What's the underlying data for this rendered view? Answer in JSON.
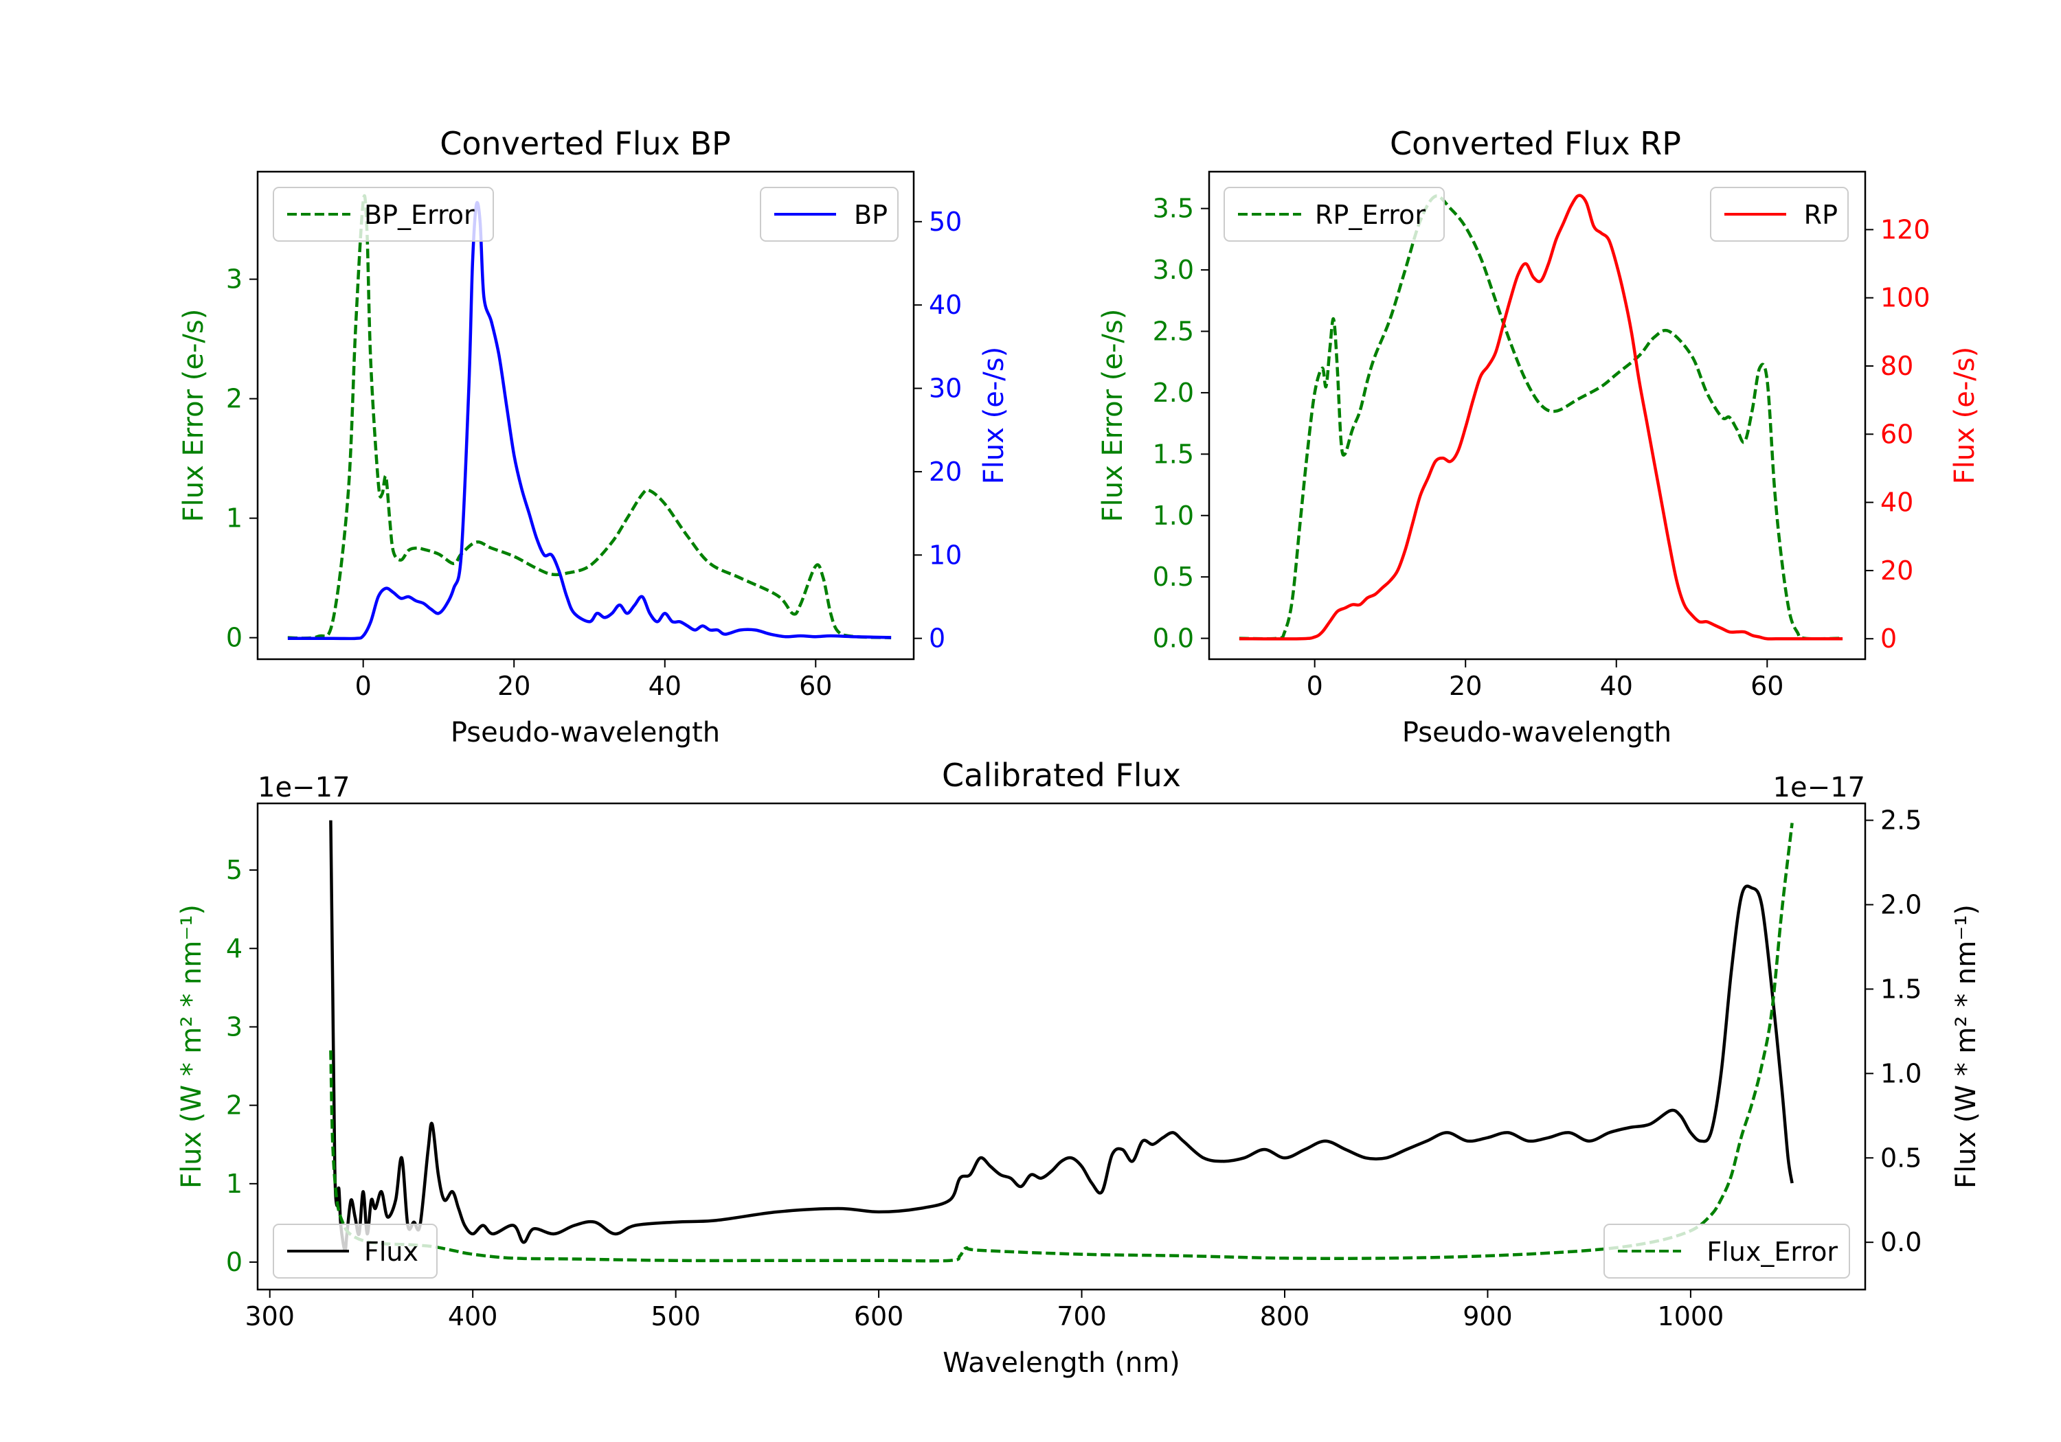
{
  "chart_data": [
    {
      "type": "line",
      "title": "Converted Flux BP",
      "xlabel": "Pseudo-wavelength",
      "ylabel_left": "Flux Error (e-/s)",
      "ylabel_right": "Flux (e-/s)",
      "xlim": [
        -14,
        73
      ],
      "ylim_left": [
        -0.18,
        3.9
      ],
      "ylim_right": [
        -2.5,
        56
      ],
      "xticks": [
        0,
        20,
        40,
        60
      ],
      "yticks_left": [
        0,
        1,
        2,
        3
      ],
      "yticks_right": [
        0,
        10,
        20,
        30,
        40,
        50
      ],
      "legend_left": "top-left",
      "legend_right": "top-right",
      "series": [
        {
          "name": "BP_Error",
          "axis": "left",
          "color": "#008000",
          "style": "dashed",
          "x": [
            -10,
            -6,
            -4,
            -2,
            -1,
            0,
            0.5,
            1,
            2,
            2.5,
            3,
            3.5,
            4,
            5,
            6,
            7,
            8,
            10,
            12,
            13,
            15,
            17,
            20,
            23,
            25,
            27,
            30,
            33,
            35,
            37,
            38,
            40,
            43,
            46,
            50,
            55,
            57,
            58,
            60,
            61,
            62,
            63,
            65,
            70
          ],
          "y": [
            0.0,
            0.01,
            0.15,
            1.2,
            2.6,
            3.65,
            3.4,
            2.3,
            1.3,
            1.2,
            1.35,
            1.0,
            0.72,
            0.65,
            0.73,
            0.75,
            0.74,
            0.7,
            0.62,
            0.7,
            0.8,
            0.75,
            0.68,
            0.58,
            0.53,
            0.54,
            0.6,
            0.8,
            1.0,
            1.2,
            1.23,
            1.12,
            0.85,
            0.62,
            0.5,
            0.35,
            0.2,
            0.28,
            0.6,
            0.5,
            0.2,
            0.05,
            0.01,
            0.0
          ]
        },
        {
          "name": "BP",
          "axis": "right",
          "color": "#0000ff",
          "style": "solid",
          "x": [
            -10,
            -4,
            -1,
            0,
            1,
            2,
            3,
            4,
            5,
            6,
            7,
            8,
            9,
            10,
            11,
            12,
            13,
            14,
            14.5,
            15,
            15.5,
            16,
            17,
            18,
            19,
            20,
            21,
            22,
            23,
            24,
            25,
            26,
            27,
            28,
            30,
            31,
            32,
            33,
            34,
            35,
            36,
            37,
            38,
            39,
            40,
            41,
            42,
            43,
            44,
            45,
            46,
            47,
            48,
            50,
            52,
            54,
            56,
            58,
            60,
            62,
            65,
            70
          ],
          "y": [
            0,
            0,
            0,
            0.3,
            2,
            5,
            6,
            5.5,
            4.8,
            5,
            4.5,
            4.2,
            3.5,
            3,
            4,
            6,
            10,
            30,
            45,
            52,
            50,
            41,
            38,
            34,
            28,
            22,
            18,
            15,
            12,
            10,
            10,
            8,
            5,
            3,
            2,
            3,
            2.5,
            3,
            4,
            3,
            4,
            5,
            3,
            2,
            3,
            2,
            2,
            1.5,
            1,
            1.5,
            1,
            1,
            0.5,
            1,
            1,
            0.5,
            0.2,
            0.3,
            0.2,
            0.3,
            0.2,
            0.1
          ]
        }
      ]
    },
    {
      "type": "line",
      "title": "Converted Flux RP",
      "xlabel": "Pseudo-wavelength",
      "ylabel_left": "Flux Error (e-/s)",
      "ylabel_right": "Flux (e-/s)",
      "xlim": [
        -14,
        73
      ],
      "ylim_left": [
        -0.17,
        3.8
      ],
      "ylim_right": [
        -6,
        137
      ],
      "xticks": [
        0,
        20,
        40,
        60
      ],
      "yticks_left": [
        0.0,
        0.5,
        1.0,
        1.5,
        2.0,
        2.5,
        3.0,
        3.5
      ],
      "yticks_right": [
        0,
        20,
        40,
        60,
        80,
        100,
        120
      ],
      "legend_left": "top-left",
      "legend_right": "top-right",
      "series": [
        {
          "name": "RP_Error",
          "axis": "left",
          "color": "#008000",
          "style": "dashed",
          "x": [
            -10,
            -5,
            -4,
            -3,
            -2,
            -1,
            0,
            1,
            1.5,
            2,
            2.5,
            3,
            3.5,
            4,
            5,
            6,
            7,
            8,
            10,
            12,
            14,
            16,
            18,
            20,
            22,
            24,
            26,
            28,
            30,
            32,
            35,
            38,
            40,
            43,
            45,
            47,
            50,
            52,
            54,
            55,
            56,
            57,
            58,
            59,
            60,
            61,
            62,
            63,
            64,
            65,
            70
          ],
          "y": [
            0.0,
            0.0,
            0.05,
            0.3,
            0.9,
            1.5,
            2.0,
            2.2,
            2.05,
            2.35,
            2.6,
            2.2,
            1.6,
            1.5,
            1.7,
            1.85,
            2.1,
            2.3,
            2.6,
            3.0,
            3.4,
            3.6,
            3.5,
            3.35,
            3.1,
            2.75,
            2.4,
            2.1,
            1.9,
            1.85,
            1.95,
            2.05,
            2.15,
            2.3,
            2.45,
            2.5,
            2.3,
            2.0,
            1.8,
            1.8,
            1.7,
            1.6,
            1.85,
            2.2,
            2.1,
            1.2,
            0.6,
            0.2,
            0.05,
            0.0,
            0.0
          ]
        },
        {
          "name": "RP",
          "axis": "right",
          "color": "#ff0000",
          "style": "solid",
          "x": [
            -10,
            -2,
            0,
            1,
            2,
            3,
            4,
            5,
            6,
            7,
            8,
            9,
            10,
            11,
            12,
            13,
            14,
            15,
            16,
            17,
            18,
            19,
            20,
            21,
            22,
            23,
            24,
            25,
            26,
            27,
            28,
            29,
            30,
            31,
            32,
            33,
            34,
            35,
            36,
            37,
            38,
            39,
            40,
            41,
            42,
            43,
            44,
            45,
            46,
            47,
            48,
            49,
            50,
            51,
            52,
            53,
            54,
            55,
            56,
            57,
            58,
            59,
            60,
            62,
            65,
            70
          ],
          "y": [
            0,
            0,
            0.5,
            2,
            5,
            8,
            9,
            10,
            10,
            12,
            13,
            15,
            17,
            20,
            26,
            34,
            42,
            47,
            52,
            53,
            52,
            55,
            62,
            70,
            77,
            80,
            84,
            92,
            100,
            107,
            110,
            106,
            105,
            110,
            117,
            122,
            127,
            130,
            128,
            121,
            119,
            117,
            110,
            101,
            90,
            76,
            64,
            52,
            40,
            28,
            17,
            10,
            7,
            5,
            5,
            4,
            3,
            2,
            2,
            2,
            1,
            0.5,
            0,
            0,
            0,
            0
          ]
        }
      ]
    },
    {
      "type": "line",
      "title": "Calibrated Flux",
      "xlabel": "Wavelength (nm)",
      "ylabel_left": "Flux (W * m² * nm⁻¹)",
      "ylabel_right": "Flux (W * m² * nm⁻¹)",
      "exponent_left": "1e−17",
      "exponent_right": "1e−17",
      "xlim": [
        294,
        1086
      ],
      "ylim_left": [
        -0.35,
        5.85
      ],
      "ylim_right": [
        -0.28,
        2.6
      ],
      "xticks": [
        300,
        400,
        500,
        600,
        700,
        800,
        900,
        1000
      ],
      "yticks_left": [
        0,
        1,
        2,
        3,
        4,
        5
      ],
      "yticks_right": [
        0.0,
        0.5,
        1.0,
        1.5,
        2.0,
        2.5
      ],
      "legend_left": "bottom-left",
      "legend_right": "bottom-right",
      "series": [
        {
          "name": "Flux",
          "axis": "right",
          "color": "#000000",
          "style": "solid",
          "x": [
            330,
            331,
            332,
            333,
            334,
            335,
            337,
            338,
            340,
            342,
            344,
            346,
            348,
            350,
            352,
            355,
            358,
            362,
            365,
            368,
            371,
            374,
            378,
            380,
            383,
            386,
            390,
            393,
            396,
            400,
            405,
            410,
            420,
            425,
            430,
            440,
            450,
            460,
            470,
            480,
            500,
            520,
            550,
            580,
            600,
            620,
            635,
            640,
            645,
            650,
            655,
            660,
            665,
            670,
            675,
            680,
            685,
            690,
            695,
            700,
            705,
            710,
            715,
            720,
            725,
            730,
            735,
            740,
            745,
            750,
            760,
            770,
            780,
            790,
            800,
            810,
            820,
            830,
            840,
            850,
            860,
            870,
            880,
            890,
            900,
            910,
            920,
            930,
            940,
            950,
            960,
            970,
            980,
            990,
            995,
            1000,
            1005,
            1010,
            1015,
            1020,
            1025,
            1030,
            1035,
            1040,
            1045,
            1048,
            1050
          ],
          "y": [
            2.5,
            1.5,
            0.45,
            0.22,
            0.32,
            0.1,
            -0.05,
            0.05,
            0.25,
            0.15,
            0.05,
            0.3,
            0.05,
            0.25,
            0.2,
            0.3,
            0.15,
            0.25,
            0.5,
            0.1,
            0.12,
            0.1,
            0.55,
            0.7,
            0.4,
            0.25,
            0.3,
            0.2,
            0.1,
            0.05,
            0.1,
            0.05,
            0.1,
            0.0,
            0.08,
            0.05,
            0.1,
            0.12,
            0.05,
            0.1,
            0.12,
            0.13,
            0.18,
            0.2,
            0.18,
            0.2,
            0.25,
            0.38,
            0.4,
            0.5,
            0.45,
            0.4,
            0.38,
            0.33,
            0.4,
            0.38,
            0.42,
            0.48,
            0.5,
            0.45,
            0.35,
            0.3,
            0.52,
            0.55,
            0.48,
            0.6,
            0.58,
            0.62,
            0.65,
            0.6,
            0.5,
            0.48,
            0.5,
            0.55,
            0.5,
            0.55,
            0.6,
            0.55,
            0.5,
            0.5,
            0.55,
            0.6,
            0.65,
            0.6,
            0.62,
            0.65,
            0.6,
            0.62,
            0.65,
            0.6,
            0.65,
            0.68,
            0.7,
            0.78,
            0.75,
            0.65,
            0.6,
            0.65,
            1.0,
            1.6,
            2.05,
            2.1,
            2.0,
            1.5,
            0.9,
            0.5,
            0.35
          ]
        },
        {
          "name": "Flux_Error",
          "axis": "left",
          "color": "#008000",
          "style": "dashed",
          "x": [
            330,
            331,
            333,
            336,
            340,
            350,
            370,
            380,
            390,
            400,
            420,
            450,
            500,
            550,
            600,
            635,
            640,
            643,
            650,
            700,
            750,
            800,
            850,
            900,
            950,
            980,
            1000,
            1010,
            1015,
            1020,
            1025,
            1030,
            1035,
            1040,
            1045,
            1050
          ],
          "y": [
            2.7,
            1.5,
            0.8,
            0.5,
            0.35,
            0.25,
            0.22,
            0.2,
            0.15,
            0.1,
            0.05,
            0.04,
            0.02,
            0.02,
            0.02,
            0.02,
            0.08,
            0.18,
            0.15,
            0.1,
            0.08,
            0.05,
            0.05,
            0.08,
            0.15,
            0.25,
            0.4,
            0.6,
            0.8,
            1.1,
            1.6,
            2.0,
            2.5,
            3.2,
            4.5,
            5.6
          ]
        }
      ]
    }
  ]
}
